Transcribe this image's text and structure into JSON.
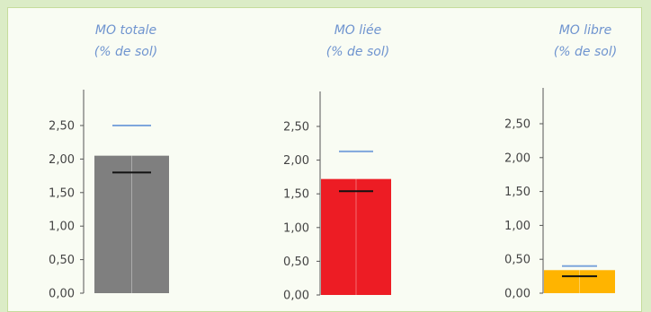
{
  "chart_data": [
    {
      "type": "bar",
      "title": "MO totale",
      "subtitle": "(% de sol)",
      "ylim": [
        0,
        2.5
      ],
      "yticks": [
        "2,50",
        "2,00",
        "1,50",
        "1,00",
        "0,50",
        "0,00"
      ],
      "value": 2.05,
      "reference_low": 1.8,
      "reference_high": 2.5,
      "bar_color": "#7f7f7f",
      "grid": false
    },
    {
      "type": "bar",
      "title": "MO liée",
      "subtitle": "(% de sol)",
      "ylim": [
        0,
        2.5
      ],
      "yticks": [
        "2,50",
        "2,00",
        "1,50",
        "1,00",
        "0,50",
        "0,00"
      ],
      "value": 1.72,
      "reference_low": 1.54,
      "reference_high": 2.13,
      "bar_color": "#ed1c24",
      "grid": false
    },
    {
      "type": "bar",
      "title": "MO libre",
      "subtitle": "(% de sol)",
      "ylim": [
        0,
        2.5
      ],
      "yticks": [
        "2,50",
        "2,00",
        "1,50",
        "1,00",
        "0,50",
        "0,00"
      ],
      "value": 0.34,
      "reference_low": 0.25,
      "reference_high": 0.4,
      "bar_color": "#ffb400",
      "grid": false
    }
  ],
  "colors": {
    "title": "#6f94cf",
    "reference_high_line": "#7ea6dc",
    "reference_low_line": "#111111",
    "panel_background": "#f9fcf3",
    "page_background": "#dbecc6"
  }
}
